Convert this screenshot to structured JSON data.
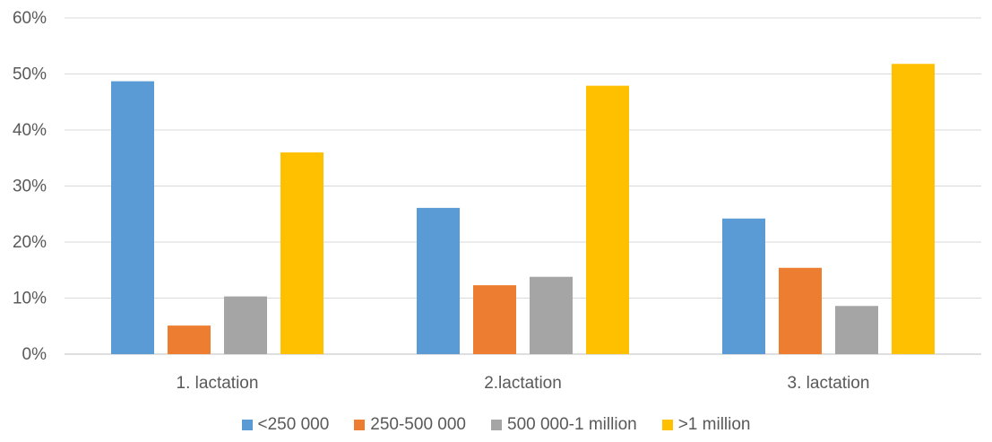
{
  "chart_data": {
    "type": "bar",
    "title": "",
    "xlabel": "",
    "ylabel": "",
    "categories": [
      "1. lactation",
      "2.lactation",
      "3. lactation"
    ],
    "series": [
      {
        "name": "<250 000",
        "color": "#5b9bd5",
        "values": [
          0.487,
          0.261,
          0.242
        ]
      },
      {
        "name": "250-500 000",
        "color": "#ed7d31",
        "values": [
          0.051,
          0.123,
          0.154
        ]
      },
      {
        "name": "500 000-1 million",
        "color": "#a5a5a5",
        "values": [
          0.103,
          0.138,
          0.086
        ]
      },
      {
        "name": ">1 million",
        "color": "#ffc000",
        "values": [
          0.36,
          0.479,
          0.518
        ]
      }
    ],
    "ylim": [
      0,
      0.6
    ],
    "yticks": [
      0,
      0.1,
      0.2,
      0.3,
      0.4,
      0.5,
      0.6
    ],
    "ytick_labels": [
      "0%",
      "10%",
      "20%",
      "30%",
      "40%",
      "50%",
      "60%"
    ],
    "grid": true,
    "legend_position": "bottom"
  }
}
